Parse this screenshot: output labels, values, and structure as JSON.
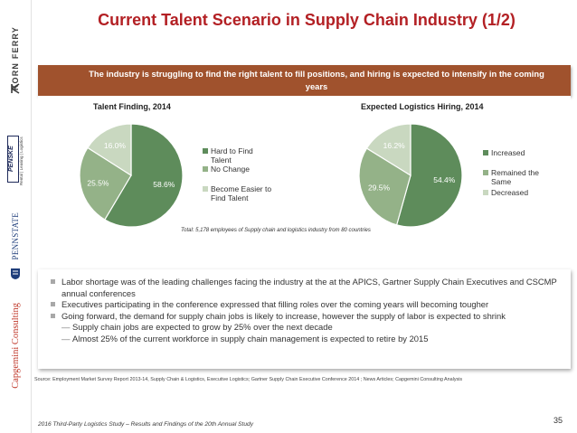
{
  "logos": {
    "korn_ferry": "KORN FERRY",
    "penske": "PENSKE",
    "penske_tag": "Rental | Leasing | Logistics",
    "penn_state": "PENNSTATE",
    "capgemini": "Capgemini Consulting"
  },
  "title": "Current Talent Scenario in Supply Chain Industry (1/2)",
  "banner": "The industry is struggling to find the right talent to fill positions, and hiring is expected to intensify in the coming years",
  "colors": {
    "title": "#b32024",
    "banner": "#a0522d",
    "series_dark": "#5e8c5b",
    "series_mid": "#94b288",
    "series_light": "#c9d8c0"
  },
  "chart_data": [
    {
      "type": "pie",
      "title": "Talent Finding, 2014",
      "categories": [
        "Hard to Find Talent",
        "No Change",
        "Become Easier to Find Talent"
      ],
      "values": [
        58.6,
        25.5,
        16.0
      ],
      "labels": [
        "58.6%",
        "25.5%",
        "16.0%"
      ],
      "legend_position": "right"
    },
    {
      "type": "pie",
      "title": "Expected Logistics Hiring, 2014",
      "categories": [
        "Increased",
        "Remained the Same",
        "Decreased"
      ],
      "values": [
        54.4,
        29.5,
        16.2
      ],
      "labels": [
        "54.4%",
        "29.5%",
        "16.2%"
      ],
      "legend_position": "right"
    }
  ],
  "chart_note": "Total: 5,178 employees of Supply chain and logistics industry from 80 countries",
  "bullets": [
    {
      "level": 1,
      "text": "Labor shortage was of the leading challenges facing the industry at the at the APICS, Gartner Supply Chain Executives and CSCMP annual conferences"
    },
    {
      "level": 1,
      "text": "Executives participating in the conference expressed that filling roles over the coming years will becoming tougher"
    },
    {
      "level": 1,
      "text": "Going forward, the demand for supply chain jobs is likely to increase, however the supply of labor is expected to shrink"
    },
    {
      "level": 2,
      "text": "Supply chain jobs are expected to grow by 25% over the next decade"
    },
    {
      "level": 2,
      "text": "Almost 25% of the current workforce in supply chain management is expected to retire by 2015"
    }
  ],
  "source": "Source: Employment Market Survey Report 2013-14, Supply Chain & Logistics, Executive Logistics; Gartner Supply Chain Executive Conference 2014 ; News Articles; Capgemini Consulting Analysis",
  "footer": "2016 Third-Party Logistics Study – Results and Findings of the 20th Annual Study",
  "page_number": "35"
}
